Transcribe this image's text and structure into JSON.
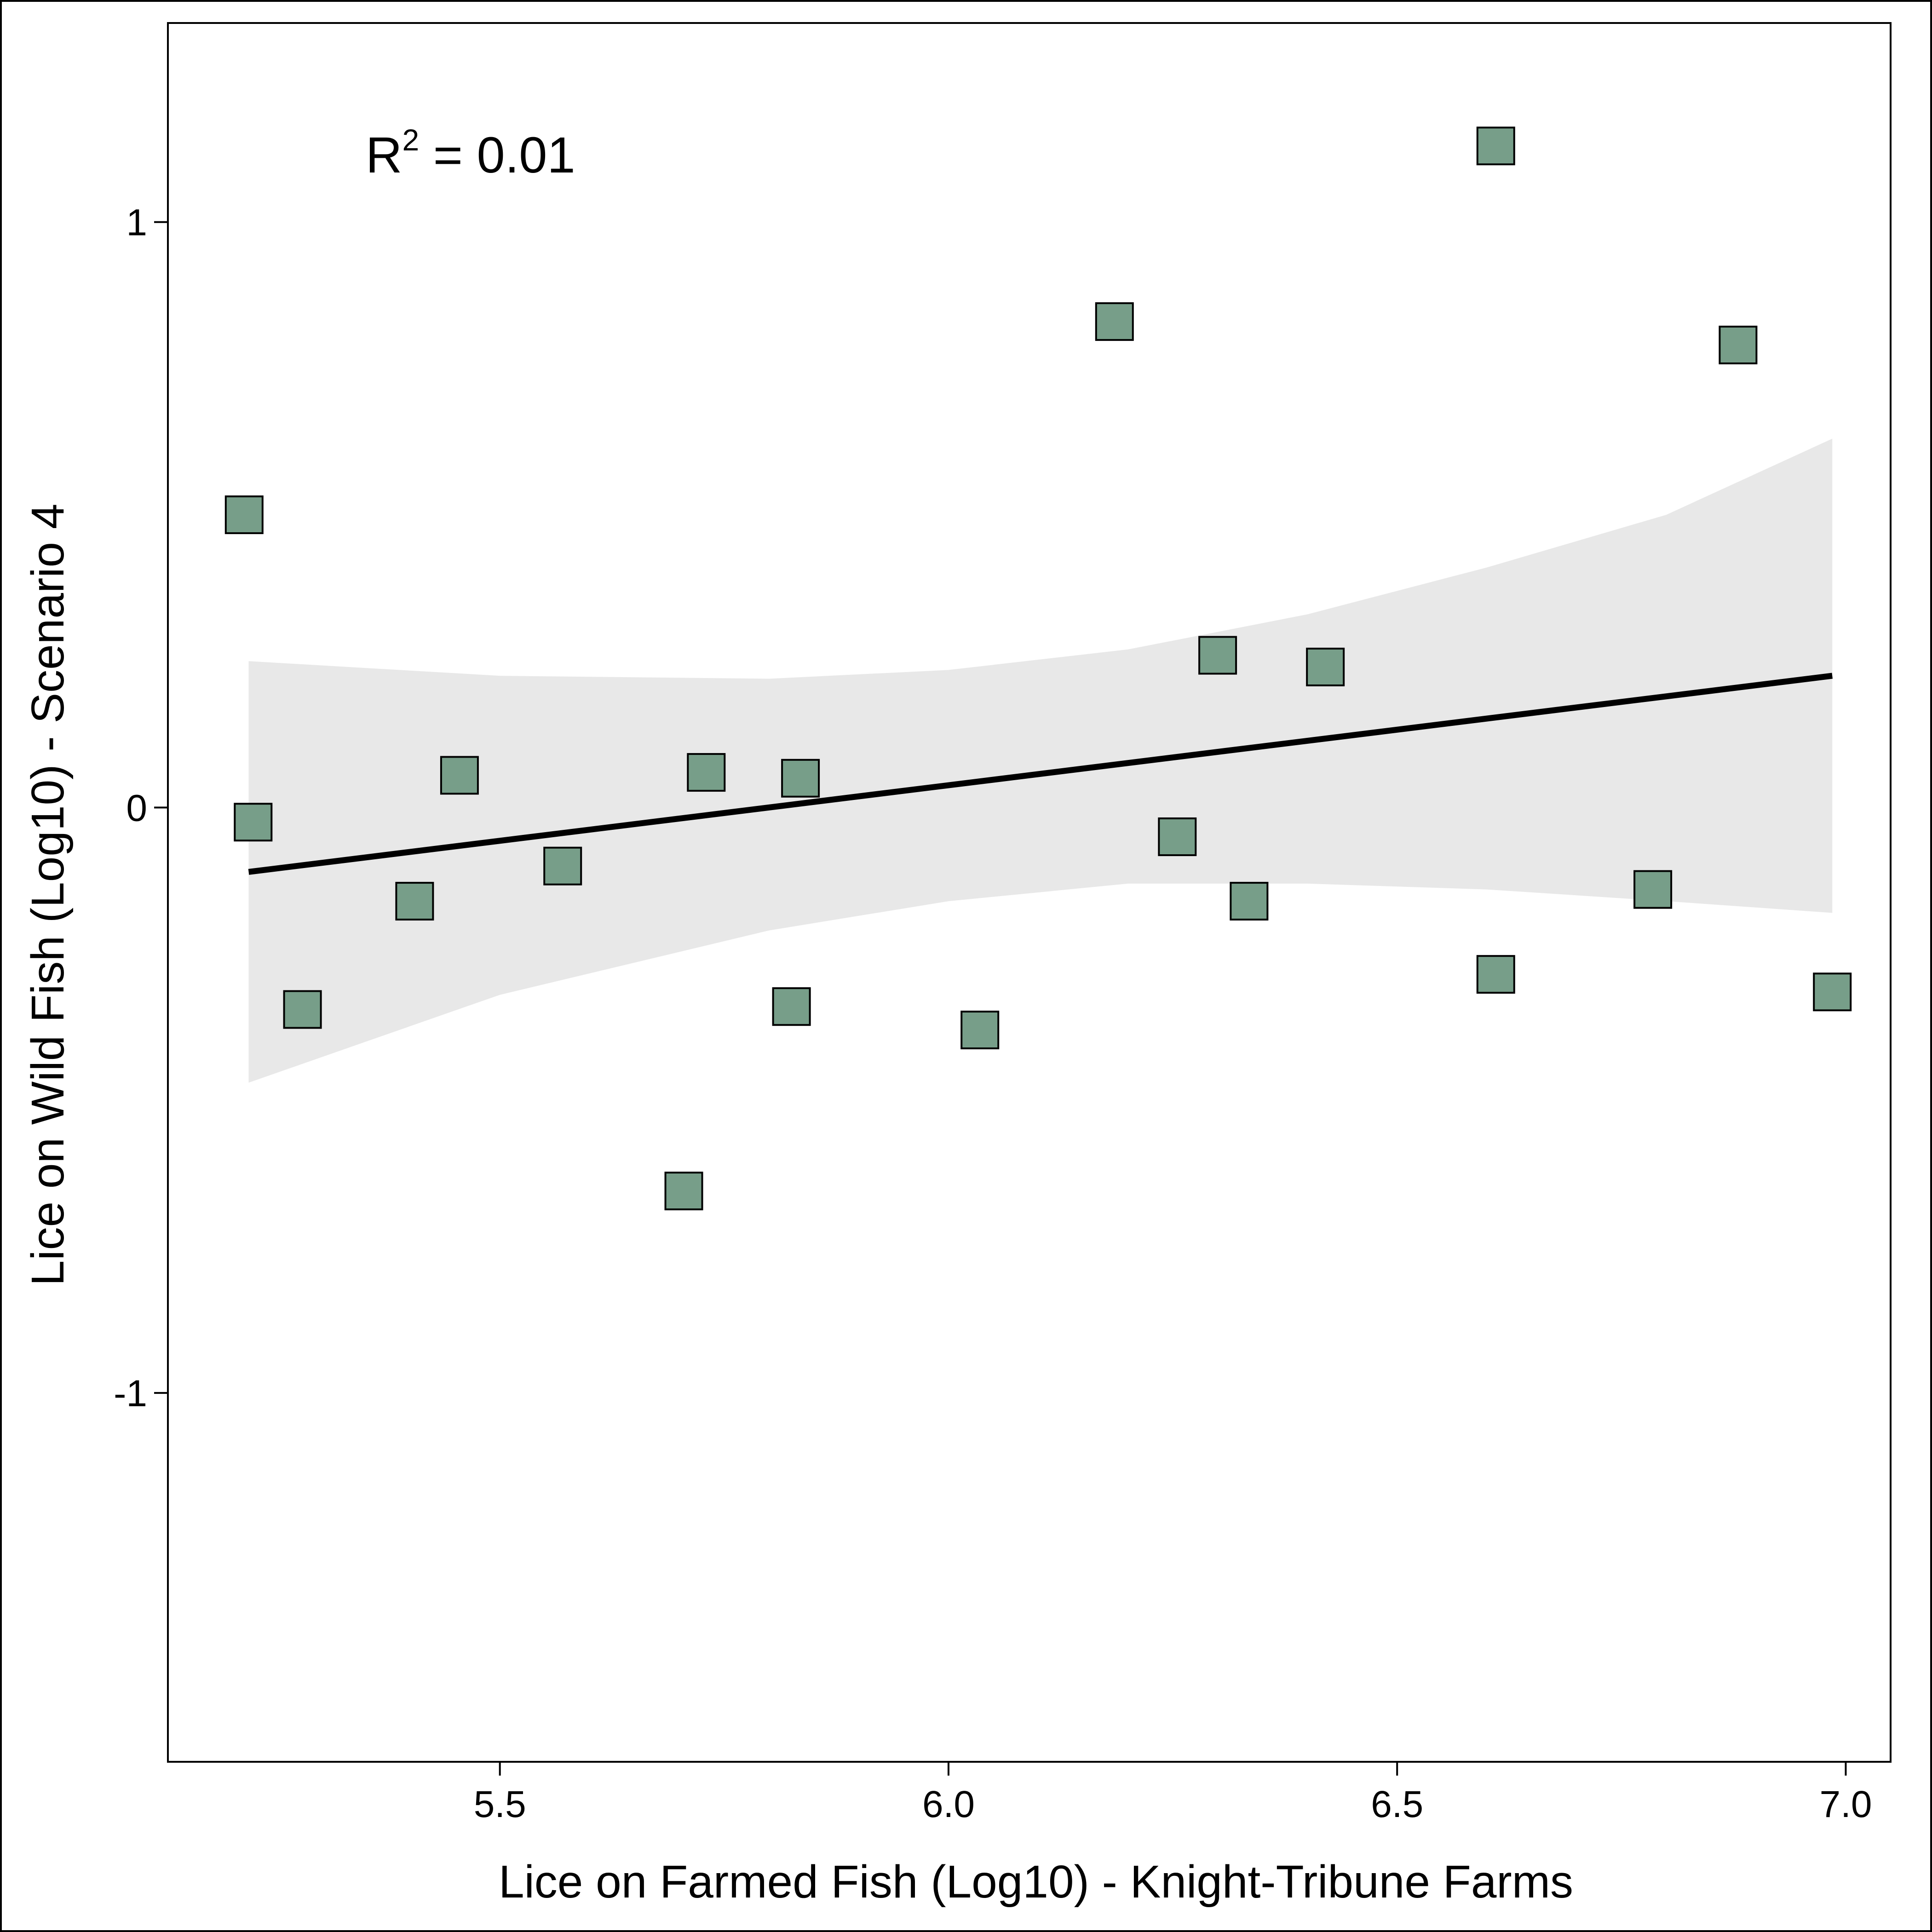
{
  "chart_data": {
    "type": "scatter",
    "xlabel": "Lice on Farmed Fish (Log10) - Knight-Tribune Farms",
    "ylabel": "Lice on Wild Fish (Log10) - Scenario 4",
    "annotation": {
      "prefix": "R",
      "superscript": "2",
      "text": " = 0.01"
    },
    "xlim": [
      5.13,
      7.05
    ],
    "ylim": [
      -1.63,
      1.34
    ],
    "x_ticks": [
      {
        "value": 5.5,
        "label": "5.5"
      },
      {
        "value": 6.0,
        "label": "6.0"
      },
      {
        "value": 6.5,
        "label": "6.5"
      },
      {
        "value": 7.0,
        "label": "7.0"
      }
    ],
    "y_ticks": [
      {
        "value": 1,
        "label": "1"
      },
      {
        "value": 0,
        "label": "0"
      },
      {
        "value": -1,
        "label": "-1"
      }
    ],
    "grid": false,
    "legend": "none",
    "marker": "square",
    "colors": {
      "marker_fill": "#779e89",
      "marker_stroke": "#000000",
      "fit_line": "#000000",
      "confidence_band": "#e8e8e8"
    },
    "points": [
      {
        "x": 5.215,
        "y": 0.5
      },
      {
        "x": 5.225,
        "y": -0.025
      },
      {
        "x": 5.28,
        "y": -0.345
      },
      {
        "x": 5.405,
        "y": -0.16
      },
      {
        "x": 5.455,
        "y": 0.055
      },
      {
        "x": 5.57,
        "y": -0.1
      },
      {
        "x": 5.705,
        "y": -0.655
      },
      {
        "x": 5.73,
        "y": 0.06
      },
      {
        "x": 5.825,
        "y": -0.34
      },
      {
        "x": 5.835,
        "y": 0.05
      },
      {
        "x": 6.035,
        "y": -0.38
      },
      {
        "x": 6.185,
        "y": 0.83
      },
      {
        "x": 6.255,
        "y": -0.05
      },
      {
        "x": 6.3,
        "y": 0.26
      },
      {
        "x": 6.335,
        "y": -0.16
      },
      {
        "x": 6.42,
        "y": 0.24
      },
      {
        "x": 6.61,
        "y": 1.13
      },
      {
        "x": 6.61,
        "y": -0.285
      },
      {
        "x": 6.785,
        "y": -0.14
      },
      {
        "x": 6.88,
        "y": 0.79
      },
      {
        "x": 6.985,
        "y": -0.315
      }
    ],
    "fit_line": {
      "x": [
        5.22,
        6.985
      ],
      "y": [
        -0.11,
        0.225
      ]
    },
    "confidence_band": {
      "x": [
        5.22,
        5.5,
        5.8,
        6.0,
        6.2,
        6.4,
        6.6,
        6.8,
        6.985
      ],
      "upper": [
        0.25,
        0.225,
        0.22,
        0.235,
        0.27,
        0.33,
        0.41,
        0.5,
        0.63
      ],
      "lower": [
        -0.47,
        -0.32,
        -0.21,
        -0.16,
        -0.13,
        -0.13,
        -0.14,
        -0.16,
        -0.18
      ]
    }
  }
}
